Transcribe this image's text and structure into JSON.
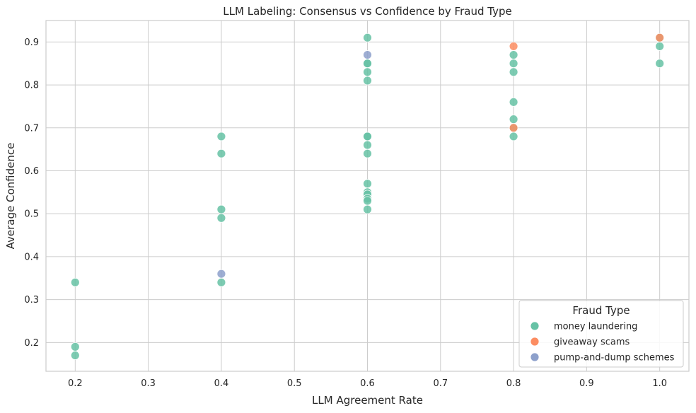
{
  "chart_data": {
    "type": "scatter",
    "title": "LLM Labeling: Consensus vs Confidence by Fraud Type",
    "xlabel": "LLM Agreement Rate",
    "ylabel": "Average Confidence",
    "xlim": [
      0.16,
      1.04
    ],
    "ylim": [
      0.133,
      0.95
    ],
    "xticks": [
      0.2,
      0.3,
      0.4,
      0.5,
      0.6,
      0.7,
      0.8,
      0.9,
      1.0
    ],
    "xtick_labels": [
      "0.2",
      "0.3",
      "0.4",
      "0.5",
      "0.6",
      "0.7",
      "0.8",
      "0.9",
      "1.0"
    ],
    "yticks": [
      0.2,
      0.3,
      0.4,
      0.5,
      0.6,
      0.7,
      0.8,
      0.9
    ],
    "ytick_labels": [
      "0.2",
      "0.3",
      "0.4",
      "0.5",
      "0.6",
      "0.7",
      "0.8",
      "0.9"
    ],
    "grid": true,
    "legend": {
      "title": "Fraud Type",
      "location": "lower-right"
    },
    "series": [
      {
        "name": "money laundering",
        "color": "#66c2a5",
        "x": [
          0.2,
          0.2,
          0.2,
          0.4,
          0.4,
          0.4,
          0.4,
          0.4,
          0.6,
          0.6,
          0.6,
          0.6,
          0.6,
          0.6,
          0.6,
          0.6,
          0.6,
          0.6,
          0.6,
          0.6,
          0.6,
          0.6,
          0.6,
          0.8,
          0.8,
          0.8,
          0.8,
          0.8,
          0.8,
          0.8,
          1.0,
          1.0,
          1.0
        ],
        "y": [
          0.34,
          0.19,
          0.17,
          0.68,
          0.64,
          0.51,
          0.49,
          0.34,
          0.91,
          0.85,
          0.83,
          0.81,
          0.68,
          0.66,
          0.64,
          0.57,
          0.55,
          0.545,
          0.535,
          0.53,
          0.51,
          0.85,
          0.68,
          0.87,
          0.85,
          0.83,
          0.76,
          0.72,
          0.68,
          0.7,
          0.89,
          0.85,
          0.91
        ]
      },
      {
        "name": "giveaway scams",
        "color": "#fc8d62",
        "x": [
          0.8,
          0.8,
          1.0
        ],
        "y": [
          0.89,
          0.7,
          0.91
        ]
      },
      {
        "name": "pump-and-dump schemes",
        "color": "#8da0cb",
        "x": [
          0.6,
          0.4
        ],
        "y": [
          0.87,
          0.36
        ]
      }
    ]
  }
}
